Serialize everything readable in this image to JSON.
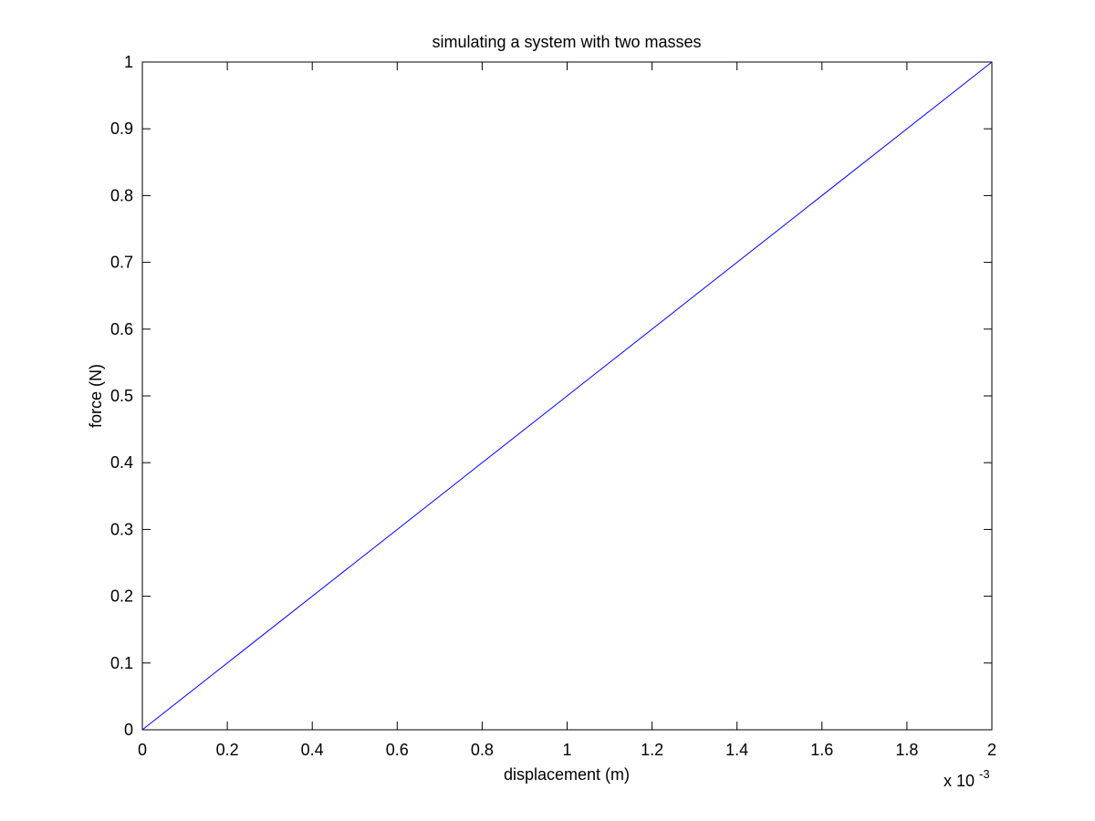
{
  "chart_data": {
    "type": "line",
    "title": "simulating a system with two masses",
    "xlabel": "displacement (m)",
    "ylabel": "force (N)",
    "x_exponent_base": "x 10",
    "x_exponent_power": "-3",
    "xlim": [
      0,
      0.002
    ],
    "ylim": [
      0,
      1
    ],
    "x_ticks": [
      0,
      0.0002,
      0.0004,
      0.0006,
      0.0008,
      0.001,
      0.0012,
      0.0014,
      0.0016,
      0.0018,
      0.002
    ],
    "x_tick_labels": [
      "0",
      "0.2",
      "0.4",
      "0.6",
      "0.8",
      "1",
      "1.2",
      "1.4",
      "1.6",
      "1.8",
      "2"
    ],
    "y_ticks": [
      0,
      0.1,
      0.2,
      0.3,
      0.4,
      0.5,
      0.6,
      0.7,
      0.8,
      0.9,
      1
    ],
    "y_tick_labels": [
      "0",
      "0.1",
      "0.2",
      "0.3",
      "0.4",
      "0.5",
      "0.6",
      "0.7",
      "0.8",
      "0.9",
      "1"
    ],
    "grid": false,
    "series": [
      {
        "color": "#0000ff",
        "x": [
          0,
          0.002
        ],
        "y": [
          0,
          1
        ]
      }
    ]
  }
}
